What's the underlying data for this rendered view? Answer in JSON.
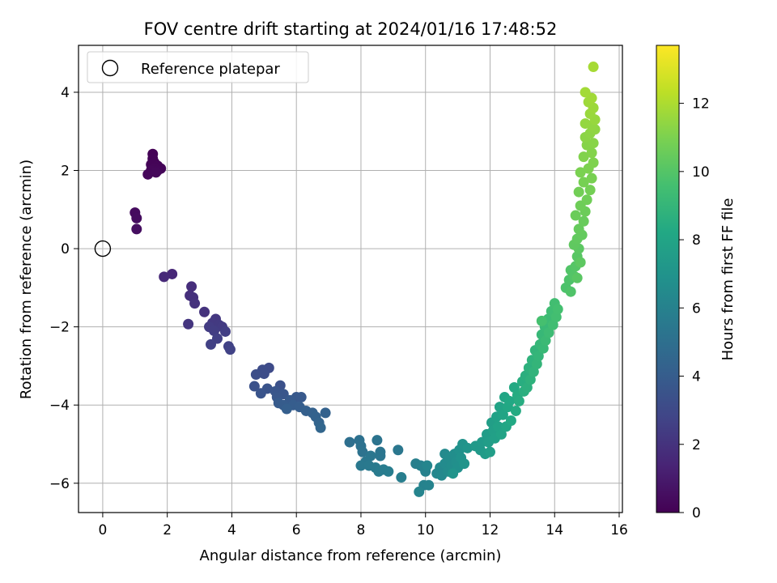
{
  "chart_data": {
    "type": "scatter",
    "title": "FOV centre drift starting at 2024/01/16 17:48:52",
    "xlabel": "Angular distance from reference (arcmin)",
    "ylabel": "Rotation from reference (arcmin)",
    "xlim": [
      -0.75,
      16.1
    ],
    "ylim": [
      -6.75,
      5.2
    ],
    "xticks": [
      0,
      2,
      4,
      6,
      8,
      10,
      12,
      14,
      16
    ],
    "yticks": [
      -6,
      -4,
      -2,
      0,
      2,
      4
    ],
    "grid": true,
    "legend": {
      "position": "upper-left",
      "entries": [
        "Reference platepar"
      ]
    },
    "reference_point": {
      "x": 0,
      "y": 0
    },
    "colorbar": {
      "label": "Hours from first FF file",
      "range": [
        0,
        13.7
      ],
      "ticks": [
        0,
        2,
        4,
        6,
        8,
        10,
        12
      ],
      "colormap": "viridis"
    },
    "points": [
      {
        "x": 1.55,
        "y": 2.42,
        "h": 0.05
      },
      {
        "x": 1.55,
        "y": 2.3,
        "h": 0.08
      },
      {
        "x": 1.6,
        "y": 2.2,
        "h": 0.1
      },
      {
        "x": 1.5,
        "y": 2.15,
        "h": 0.12
      },
      {
        "x": 1.7,
        "y": 2.12,
        "h": 0.14
      },
      {
        "x": 1.8,
        "y": 2.05,
        "h": 0.16
      },
      {
        "x": 1.6,
        "y": 2.05,
        "h": 0.18
      },
      {
        "x": 1.7,
        "y": 2.0,
        "h": 0.2
      },
      {
        "x": 1.5,
        "y": 2.0,
        "h": 0.22
      },
      {
        "x": 1.4,
        "y": 1.9,
        "h": 0.24
      },
      {
        "x": 1.65,
        "y": 1.95,
        "h": 0.26
      },
      {
        "x": 1.0,
        "y": 0.92,
        "h": 0.4
      },
      {
        "x": 1.05,
        "y": 0.78,
        "h": 0.45
      },
      {
        "x": 1.05,
        "y": 0.5,
        "h": 0.5
      },
      {
        "x": 2.15,
        "y": -0.65,
        "h": 1.5
      },
      {
        "x": 1.9,
        "y": -0.72,
        "h": 1.6
      },
      {
        "x": 2.75,
        "y": -0.97,
        "h": 1.8
      },
      {
        "x": 2.7,
        "y": -1.2,
        "h": 1.85
      },
      {
        "x": 2.8,
        "y": -1.25,
        "h": 1.9
      },
      {
        "x": 2.85,
        "y": -1.4,
        "h": 1.95
      },
      {
        "x": 3.15,
        "y": -1.62,
        "h": 2.0
      },
      {
        "x": 2.65,
        "y": -1.93,
        "h": 2.1
      },
      {
        "x": 3.5,
        "y": -1.8,
        "h": 2.2
      },
      {
        "x": 3.4,
        "y": -1.9,
        "h": 2.25
      },
      {
        "x": 3.6,
        "y": -1.95,
        "h": 2.3
      },
      {
        "x": 3.7,
        "y": -2.0,
        "h": 2.35
      },
      {
        "x": 3.3,
        "y": -2.0,
        "h": 2.4
      },
      {
        "x": 3.45,
        "y": -2.1,
        "h": 2.45
      },
      {
        "x": 3.8,
        "y": -2.12,
        "h": 2.5
      },
      {
        "x": 3.55,
        "y": -2.3,
        "h": 2.55
      },
      {
        "x": 3.35,
        "y": -2.45,
        "h": 2.6
      },
      {
        "x": 3.9,
        "y": -2.5,
        "h": 2.65
      },
      {
        "x": 3.95,
        "y": -2.58,
        "h": 2.7
      },
      {
        "x": 5.15,
        "y": -3.05,
        "h": 3.1
      },
      {
        "x": 4.95,
        "y": -3.1,
        "h": 3.15
      },
      {
        "x": 5.0,
        "y": -3.2,
        "h": 3.2
      },
      {
        "x": 4.75,
        "y": -3.22,
        "h": 3.25
      },
      {
        "x": 5.5,
        "y": -3.5,
        "h": 3.4
      },
      {
        "x": 4.7,
        "y": -3.52,
        "h": 3.45
      },
      {
        "x": 5.1,
        "y": -3.58,
        "h": 3.5
      },
      {
        "x": 4.9,
        "y": -3.7,
        "h": 3.55
      },
      {
        "x": 5.35,
        "y": -3.65,
        "h": 3.6
      },
      {
        "x": 5.6,
        "y": -3.72,
        "h": 3.65
      },
      {
        "x": 5.4,
        "y": -3.8,
        "h": 3.7
      },
      {
        "x": 6.0,
        "y": -3.8,
        "h": 3.75
      },
      {
        "x": 6.15,
        "y": -3.8,
        "h": 3.8
      },
      {
        "x": 5.8,
        "y": -3.88,
        "h": 3.85
      },
      {
        "x": 5.45,
        "y": -3.95,
        "h": 3.9
      },
      {
        "x": 5.6,
        "y": -4.0,
        "h": 3.95
      },
      {
        "x": 5.9,
        "y": -4.0,
        "h": 4.0
      },
      {
        "x": 6.1,
        "y": -4.05,
        "h": 4.05
      },
      {
        "x": 5.7,
        "y": -4.1,
        "h": 4.1
      },
      {
        "x": 6.3,
        "y": -4.15,
        "h": 4.15
      },
      {
        "x": 6.5,
        "y": -4.2,
        "h": 4.2
      },
      {
        "x": 6.9,
        "y": -4.2,
        "h": 4.25
      },
      {
        "x": 6.6,
        "y": -4.3,
        "h": 4.3
      },
      {
        "x": 6.7,
        "y": -4.45,
        "h": 4.4
      },
      {
        "x": 6.75,
        "y": -4.58,
        "h": 4.5
      },
      {
        "x": 7.65,
        "y": -4.95,
        "h": 5.0
      },
      {
        "x": 7.95,
        "y": -4.9,
        "h": 5.05
      },
      {
        "x": 8.0,
        "y": -5.05,
        "h": 5.1
      },
      {
        "x": 8.05,
        "y": -5.2,
        "h": 5.15
      },
      {
        "x": 8.5,
        "y": -4.9,
        "h": 5.2
      },
      {
        "x": 8.6,
        "y": -5.2,
        "h": 5.25
      },
      {
        "x": 8.6,
        "y": -5.3,
        "h": 5.3
      },
      {
        "x": 8.3,
        "y": -5.3,
        "h": 5.35
      },
      {
        "x": 9.15,
        "y": -5.15,
        "h": 5.4
      },
      {
        "x": 8.15,
        "y": -5.45,
        "h": 5.45
      },
      {
        "x": 8.0,
        "y": -5.55,
        "h": 5.5
      },
      {
        "x": 8.25,
        "y": -5.55,
        "h": 5.55
      },
      {
        "x": 8.45,
        "y": -5.6,
        "h": 5.6
      },
      {
        "x": 8.55,
        "y": -5.7,
        "h": 5.65
      },
      {
        "x": 8.7,
        "y": -5.65,
        "h": 5.7
      },
      {
        "x": 8.85,
        "y": -5.7,
        "h": 5.75
      },
      {
        "x": 9.25,
        "y": -5.85,
        "h": 5.8
      },
      {
        "x": 9.7,
        "y": -5.5,
        "h": 5.85
      },
      {
        "x": 9.85,
        "y": -5.55,
        "h": 5.9
      },
      {
        "x": 9.95,
        "y": -5.6,
        "h": 5.95
      },
      {
        "x": 10.0,
        "y": -5.7,
        "h": 6.0
      },
      {
        "x": 9.95,
        "y": -6.05,
        "h": 6.05
      },
      {
        "x": 10.1,
        "y": -6.05,
        "h": 6.1
      },
      {
        "x": 9.8,
        "y": -6.22,
        "h": 6.15
      },
      {
        "x": 10.05,
        "y": -5.55,
        "h": 6.2
      },
      {
        "x": 10.35,
        "y": -5.75,
        "h": 6.3
      },
      {
        "x": 10.45,
        "y": -5.6,
        "h": 6.35
      },
      {
        "x": 10.5,
        "y": -5.8,
        "h": 6.4
      },
      {
        "x": 10.6,
        "y": -5.25,
        "h": 6.45
      },
      {
        "x": 10.6,
        "y": -5.5,
        "h": 6.5
      },
      {
        "x": 10.7,
        "y": -5.7,
        "h": 6.55
      },
      {
        "x": 10.75,
        "y": -5.35,
        "h": 6.6
      },
      {
        "x": 10.8,
        "y": -5.55,
        "h": 6.65
      },
      {
        "x": 10.9,
        "y": -5.25,
        "h": 6.7
      },
      {
        "x": 10.95,
        "y": -5.45,
        "h": 6.75
      },
      {
        "x": 11.0,
        "y": -5.6,
        "h": 6.8
      },
      {
        "x": 11.05,
        "y": -5.15,
        "h": 6.85
      },
      {
        "x": 11.1,
        "y": -5.35,
        "h": 6.9
      },
      {
        "x": 11.15,
        "y": -5.0,
        "h": 6.95
      },
      {
        "x": 11.2,
        "y": -5.5,
        "h": 7.0
      },
      {
        "x": 10.85,
        "y": -5.75,
        "h": 7.05
      },
      {
        "x": 11.3,
        "y": -5.1,
        "h": 7.1
      },
      {
        "x": 11.55,
        "y": -5.05,
        "h": 7.3
      },
      {
        "x": 11.7,
        "y": -5.15,
        "h": 7.35
      },
      {
        "x": 11.75,
        "y": -4.95,
        "h": 7.4
      },
      {
        "x": 11.85,
        "y": -5.25,
        "h": 7.45
      },
      {
        "x": 11.9,
        "y": -4.75,
        "h": 7.5
      },
      {
        "x": 11.95,
        "y": -4.95,
        "h": 7.55
      },
      {
        "x": 12.0,
        "y": -5.2,
        "h": 7.6
      },
      {
        "x": 12.05,
        "y": -4.45,
        "h": 7.65
      },
      {
        "x": 12.1,
        "y": -4.65,
        "h": 7.7
      },
      {
        "x": 12.15,
        "y": -4.85,
        "h": 7.75
      },
      {
        "x": 12.2,
        "y": -4.3,
        "h": 7.8
      },
      {
        "x": 12.25,
        "y": -4.55,
        "h": 7.85
      },
      {
        "x": 12.3,
        "y": -4.05,
        "h": 7.9
      },
      {
        "x": 12.35,
        "y": -4.75,
        "h": 7.95
      },
      {
        "x": 12.4,
        "y": -4.25,
        "h": 8.0
      },
      {
        "x": 12.45,
        "y": -3.8,
        "h": 8.05
      },
      {
        "x": 12.5,
        "y": -4.55,
        "h": 8.1
      },
      {
        "x": 12.55,
        "y": -4.05,
        "h": 8.15
      },
      {
        "x": 12.6,
        "y": -3.9,
        "h": 8.2
      },
      {
        "x": 12.65,
        "y": -4.4,
        "h": 8.25
      },
      {
        "x": 12.75,
        "y": -3.55,
        "h": 8.3
      },
      {
        "x": 12.8,
        "y": -4.15,
        "h": 8.35
      },
      {
        "x": 12.85,
        "y": -3.75,
        "h": 8.4
      },
      {
        "x": 12.9,
        "y": -3.9,
        "h": 8.45
      },
      {
        "x": 13.0,
        "y": -3.4,
        "h": 8.5
      },
      {
        "x": 13.05,
        "y": -3.65,
        "h": 8.55
      },
      {
        "x": 13.1,
        "y": -3.25,
        "h": 8.6
      },
      {
        "x": 13.15,
        "y": -3.55,
        "h": 8.65
      },
      {
        "x": 13.2,
        "y": -3.05,
        "h": 8.7
      },
      {
        "x": 13.25,
        "y": -3.35,
        "h": 8.75
      },
      {
        "x": 13.3,
        "y": -2.85,
        "h": 8.8
      },
      {
        "x": 13.35,
        "y": -3.15,
        "h": 8.85
      },
      {
        "x": 13.4,
        "y": -2.6,
        "h": 8.9
      },
      {
        "x": 13.45,
        "y": -2.95,
        "h": 8.95
      },
      {
        "x": 13.5,
        "y": -2.75,
        "h": 9.0
      },
      {
        "x": 13.55,
        "y": -2.45,
        "h": 9.05
      },
      {
        "x": 13.6,
        "y": -2.2,
        "h": 9.1
      },
      {
        "x": 13.65,
        "y": -2.55,
        "h": 9.15
      },
      {
        "x": 13.7,
        "y": -2.0,
        "h": 9.2
      },
      {
        "x": 13.72,
        "y": -2.35,
        "h": 9.25
      },
      {
        "x": 13.8,
        "y": -1.8,
        "h": 9.3
      },
      {
        "x": 13.82,
        "y": -2.15,
        "h": 9.35
      },
      {
        "x": 13.9,
        "y": -1.6,
        "h": 9.4
      },
      {
        "x": 13.95,
        "y": -1.95,
        "h": 9.45
      },
      {
        "x": 14.0,
        "y": -1.4,
        "h": 9.5
      },
      {
        "x": 14.05,
        "y": -1.75,
        "h": 9.55
      },
      {
        "x": 14.1,
        "y": -1.55,
        "h": 9.6
      },
      {
        "x": 13.6,
        "y": -1.85,
        "h": 9.62
      },
      {
        "x": 14.35,
        "y": -1.0,
        "h": 9.8
      },
      {
        "x": 14.45,
        "y": -0.8,
        "h": 9.85
      },
      {
        "x": 14.5,
        "y": -1.1,
        "h": 9.9
      },
      {
        "x": 14.5,
        "y": -0.55,
        "h": 9.95
      },
      {
        "x": 14.6,
        "y": -0.7,
        "h": 10.0
      },
      {
        "x": 14.65,
        "y": -0.45,
        "h": 10.05
      },
      {
        "x": 14.7,
        "y": -0.2,
        "h": 10.1
      },
      {
        "x": 14.7,
        "y": -0.75,
        "h": 10.15
      },
      {
        "x": 14.75,
        "y": 0.0,
        "h": 10.2
      },
      {
        "x": 14.8,
        "y": -0.35,
        "h": 10.25
      },
      {
        "x": 14.6,
        "y": 0.1,
        "h": 10.3
      },
      {
        "x": 14.7,
        "y": 0.25,
        "h": 10.35
      },
      {
        "x": 14.85,
        "y": 0.35,
        "h": 10.4
      },
      {
        "x": 14.75,
        "y": 0.5,
        "h": 10.45
      },
      {
        "x": 14.9,
        "y": 0.7,
        "h": 10.5
      },
      {
        "x": 14.65,
        "y": 0.85,
        "h": 10.55
      },
      {
        "x": 14.95,
        "y": 0.95,
        "h": 10.6
      },
      {
        "x": 14.8,
        "y": 1.1,
        "h": 10.65
      },
      {
        "x": 15.0,
        "y": 1.25,
        "h": 10.7
      },
      {
        "x": 14.75,
        "y": 1.45,
        "h": 10.75
      },
      {
        "x": 15.1,
        "y": 1.5,
        "h": 10.8
      },
      {
        "x": 14.9,
        "y": 1.7,
        "h": 10.85
      },
      {
        "x": 15.15,
        "y": 1.8,
        "h": 10.9
      },
      {
        "x": 14.8,
        "y": 1.95,
        "h": 10.95
      },
      {
        "x": 15.05,
        "y": 2.05,
        "h": 11.0
      },
      {
        "x": 15.2,
        "y": 2.2,
        "h": 11.05
      },
      {
        "x": 14.9,
        "y": 2.35,
        "h": 11.1
      },
      {
        "x": 15.15,
        "y": 2.45,
        "h": 11.15
      },
      {
        "x": 15.0,
        "y": 2.65,
        "h": 11.2
      },
      {
        "x": 15.2,
        "y": 2.7,
        "h": 11.25
      },
      {
        "x": 14.95,
        "y": 2.85,
        "h": 11.3
      },
      {
        "x": 15.1,
        "y": 2.95,
        "h": 11.35
      },
      {
        "x": 15.25,
        "y": 3.05,
        "h": 11.4
      },
      {
        "x": 15.15,
        "y": 3.15,
        "h": 11.45
      },
      {
        "x": 14.95,
        "y": 3.2,
        "h": 11.5
      },
      {
        "x": 15.25,
        "y": 3.3,
        "h": 11.55
      },
      {
        "x": 15.1,
        "y": 3.45,
        "h": 11.6
      },
      {
        "x": 15.2,
        "y": 3.6,
        "h": 11.65
      },
      {
        "x": 15.05,
        "y": 3.75,
        "h": 11.7
      },
      {
        "x": 15.15,
        "y": 3.85,
        "h": 11.75
      },
      {
        "x": 14.95,
        "y": 4.0,
        "h": 11.8
      },
      {
        "x": 15.2,
        "y": 4.65,
        "h": 11.85
      }
    ]
  }
}
